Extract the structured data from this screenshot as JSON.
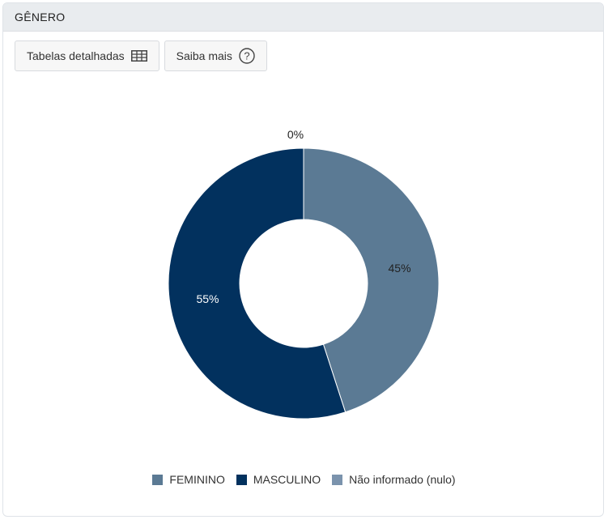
{
  "header": {
    "title": "GÊNERO"
  },
  "toolbar": {
    "tables_label": "Tabelas detalhadas",
    "tables_icon": "table-icon",
    "about_label": "Saiba mais",
    "about_icon": "help-circle-icon"
  },
  "chart_data": {
    "type": "pie",
    "donut": true,
    "categories": [
      "FEMININO",
      "MASCULINO",
      "Não informado (nulo)"
    ],
    "values": [
      45,
      55,
      0
    ],
    "labels": [
      "45%",
      "55%",
      "0%"
    ],
    "colors": [
      "#5b7a94",
      "#02315e",
      "#7b93ad"
    ],
    "label_colors": [
      "#222222",
      "#ffffff",
      "#222222"
    ],
    "legend_position": "bottom"
  }
}
